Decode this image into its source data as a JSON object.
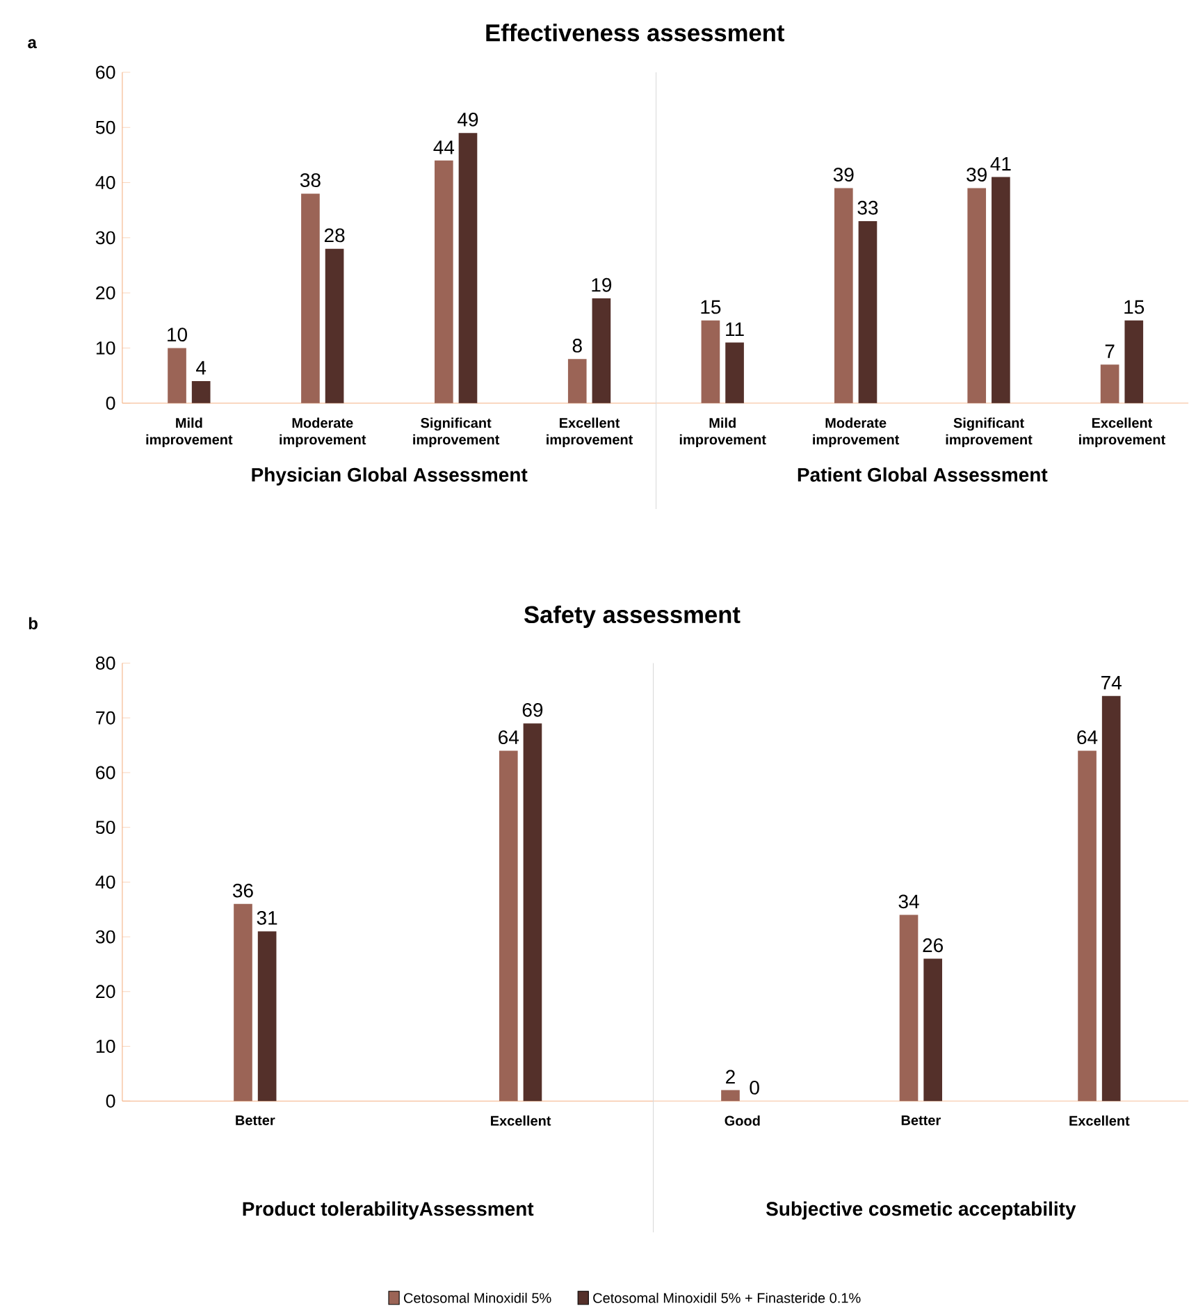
{
  "chart_data": [
    {
      "type": "bar",
      "title": "Effectiveness assessment",
      "xlabel": "Physician Global Assessment",
      "annotations": [
        "a"
      ],
      "categories": [
        "Mild improvement",
        "Moderate improvement",
        "Significant improvement",
        "Excellent improvement"
      ],
      "series": [
        {
          "color": "#9b6456",
          "values": [
            10,
            38,
            44,
            8
          ]
        },
        {
          "color": "#54302a",
          "values": [
            4,
            28,
            49,
            19
          ]
        }
      ],
      "ylim": [
        0,
        60
      ],
      "yticks": [
        0,
        10,
        20,
        30,
        40,
        50,
        60
      ],
      "data_labels": true
    },
    {
      "type": "bar",
      "xlabel": "Patient Global Assessment",
      "categories": [
        "Mild improvement",
        "Moderate improvement",
        "Significant improvement",
        "Excellent improvement"
      ],
      "series": [
        {
          "color": "#9b6456",
          "values": [
            15,
            39,
            39,
            7
          ]
        },
        {
          "color": "#54302a",
          "values": [
            11,
            33,
            41,
            15
          ]
        }
      ],
      "ylim": [
        0,
        60
      ],
      "tick_labels": "x",
      "data_labels": true
    },
    {
      "type": "bar",
      "title": "Safety assessment",
      "xlabel": "Product tolerabilityAssessment",
      "annotations": [
        "b"
      ],
      "categories": [
        "Better",
        "Excellent"
      ],
      "series": [
        {
          "color": "#9b6456",
          "values": [
            36,
            64
          ]
        },
        {
          "color": "#54302a",
          "values": [
            31,
            69
          ]
        }
      ],
      "ylim": [
        0,
        80
      ],
      "yticks": [
        0,
        10,
        20,
        30,
        40,
        50,
        60,
        70,
        80
      ],
      "data_labels": true
    },
    {
      "type": "bar",
      "xlabel": "Subjective cosmetic acceptability",
      "categories": [
        "Good",
        "Better",
        "Excellent"
      ],
      "series": [
        {
          "name": "Cetosomal Minoxidil 5%",
          "color": "#9b6456",
          "values": [
            2,
            34,
            64
          ]
        },
        {
          "name": "Cetosomal Minoxidil 5% + Finasteride 0.1%",
          "color": "#54302a",
          "values": [
            0,
            26,
            74
          ]
        }
      ],
      "ylim": [
        0,
        80
      ],
      "tick_labels": "x",
      "data_labels": true,
      "legend": "bottom"
    }
  ]
}
